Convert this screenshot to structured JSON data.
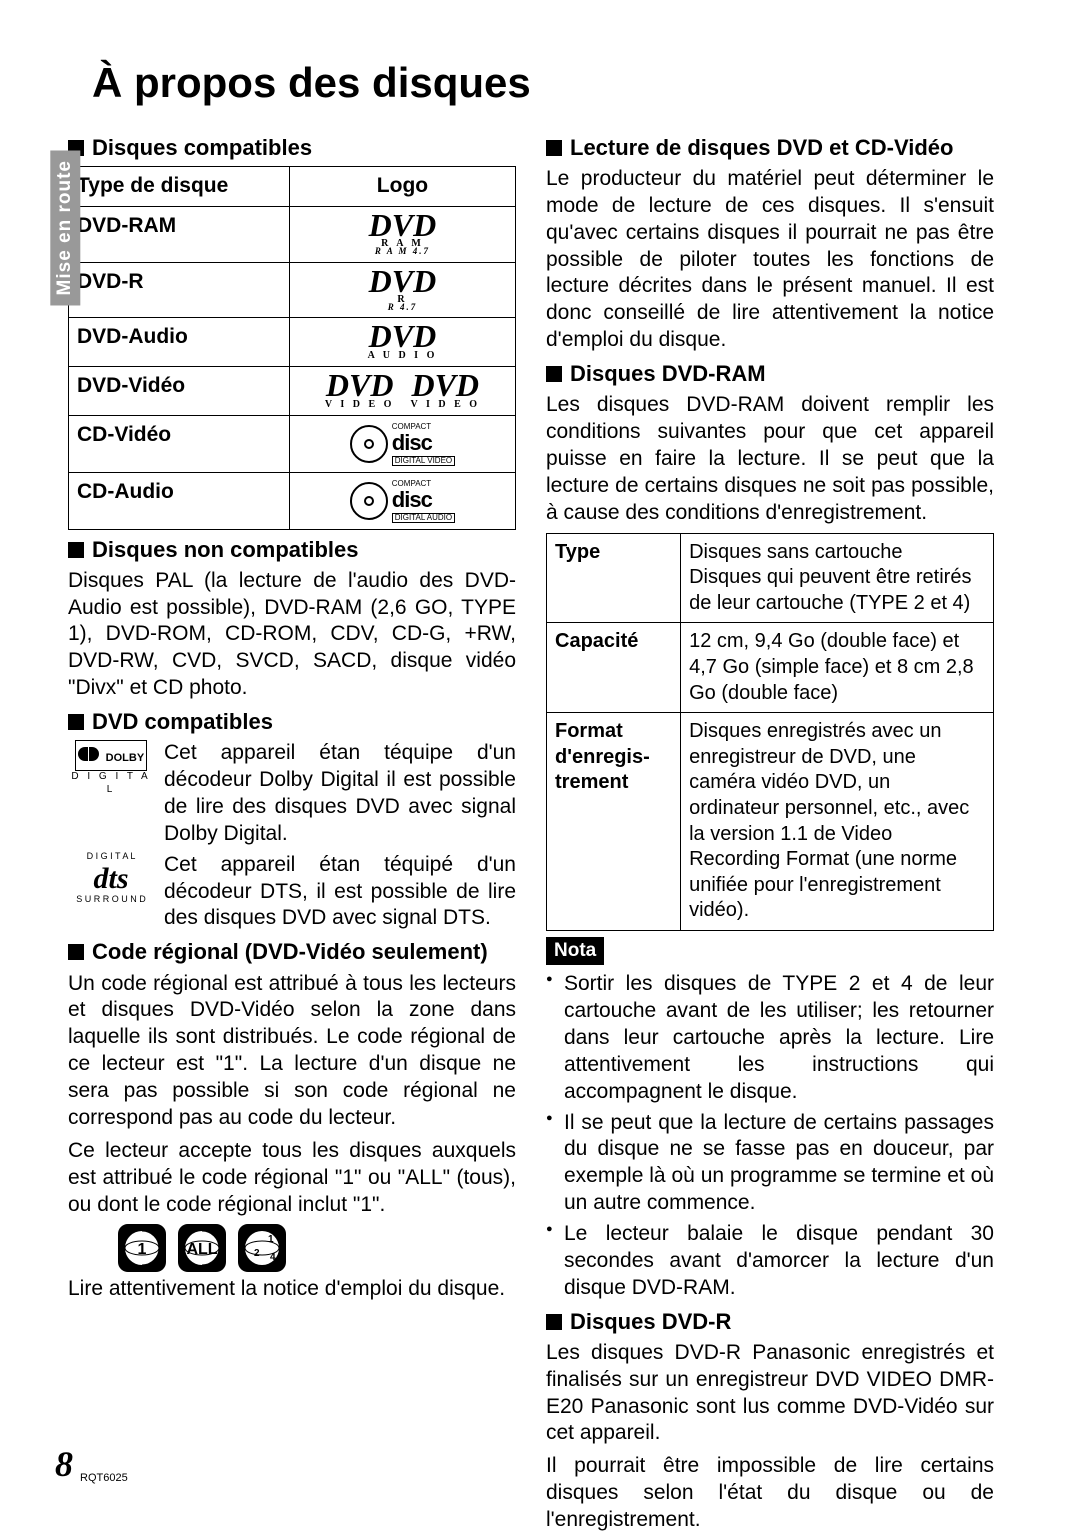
{
  "page": {
    "title": "À propos des disques",
    "side_tab": "Mise en route",
    "number": "8",
    "doc_id": "RQT6025"
  },
  "left": {
    "compat_title": "Disques compatibles",
    "header_type": "Type de disque",
    "header_logo": "Logo",
    "rows": [
      {
        "type": "DVD-RAM",
        "main": "DVD",
        "sub": "R A M",
        "line": "R A M 4.7"
      },
      {
        "type": "DVD-R",
        "main": "DVD",
        "sub": "R",
        "line": "R 4.7"
      },
      {
        "type": "DVD-Audio",
        "main": "DVD",
        "sub": "A U D I O",
        "line": ""
      },
      {
        "type": "DVD-Vidéo",
        "main": "DVD",
        "sub": "V I D E O",
        "line": "",
        "double": true
      },
      {
        "type": "CD-Vidéo",
        "cd": true,
        "cd_sub": "DIGITAL VIDEO"
      },
      {
        "type": "CD-Audio",
        "cd": true,
        "cd_sub": "DIGITAL AUDIO"
      }
    ],
    "noncompat_title": "Disques non compatibles",
    "noncompat_body": "Disques PAL (la lecture de l'audio des DVD-Audio est possible), DVD-RAM (2,6 GO, TYPE 1), DVD-ROM, CD-ROM, CDV, CD-G, +RW, DVD-RW, CVD, SVCD, SACD, disque vidéo \"Divx\" et CD photo.",
    "dvdcompat_title": "DVD compatibles",
    "dolby_body": "Cet appareil étan téquipe d'un décodeur Dolby Digital il est possible de lire des disques DVD avec signal Dolby Digital.",
    "dts_body": "Cet appareil étan téquipé d'un décodeur DTS, il est possible de lire des disques DVD avec signal DTS.",
    "region_title": "Code régional (DVD-Vidéo seulement)",
    "region_body1": "Un code régional est attribué à tous les lecteurs et disques DVD-Vidéo selon la zone dans laquelle ils sont distribués. Le code régional de ce lecteur est \"1\". La lecture d'un disque ne sera pas possible si son code régional ne correspond pas au code du lecteur.",
    "region_body2": "Ce lecteur accepte tous les disques auxquels est attribué le code régional \"1\" ou \"ALL\" (tous), ou dont le code régional inclut \"1\".",
    "badges": [
      "1",
      "ALL",
      "1 2 4"
    ],
    "footer": "Lire attentivement la notice d'emploi du disque."
  },
  "right": {
    "play_title": "Lecture de disques DVD et CD-Vidéo",
    "play_body": "Le producteur du matériel peut déterminer le mode de lecture de ces disques. Il s'ensuit qu'avec certains disques il pourrait ne pas être possible de piloter toutes les fonctions de lecture décrites dans le présent manuel. Il est donc conseillé de lire attentivement la notice d'emploi du disque.",
    "ram_title": "Disques DVD-RAM",
    "ram_body": "Les disques DVD-RAM doivent remplir les conditions suivantes pour que cet appareil puisse en faire la lecture. Il se peut que la lecture de certains disques ne soit pas possible, à cause des conditions d'enregistrement.",
    "spec": [
      {
        "k": "Type",
        "v": "Disques sans cartouche\nDisques qui peuvent être retirés de leur cartouche (TYPE 2 et 4)"
      },
      {
        "k": "Capacité",
        "v": "12 cm, 9,4 Go (double face) et 4,7 Go (simple face) et 8 cm 2,8 Go (double face)"
      },
      {
        "k": "Format d'enregis-trement",
        "v": "Disques enregistrés avec un enregistreur de DVD, une caméra vidéo DVD, un ordinateur personnel, etc., avec la version 1.1 de Video Recording Format (une norme unifiée pour l'enregistrement vidéo)."
      }
    ],
    "nota_label": "Nota",
    "nota_items": [
      "Sortir les disques de TYPE 2 et 4 de leur cartouche avant de les utiliser; les retourner dans leur cartouche après la lecture. Lire attentivement les instructions qui accompagnent le disque.",
      "Il se peut que la lecture de certains passages du disque ne se fasse pas en douceur, par exemple là où un programme se termine et où un autre commence.",
      "Le lecteur balaie le disque pendant 30 secondes avant d'amorcer la lecture d'un disque DVD-RAM."
    ],
    "dvdr_title": "Disques DVD-R",
    "dvdr_body1": "Les disques DVD-R Panasonic enregistrés et finalisés sur un enregistreur DVD VIDEO DMR-E20 Panasonic sont lus comme DVD-Vidéo sur cet appareil.",
    "dvdr_body2": "Il pourrait être impossible de lire certains disques selon l'état du disque ou de l'enregistrement."
  }
}
